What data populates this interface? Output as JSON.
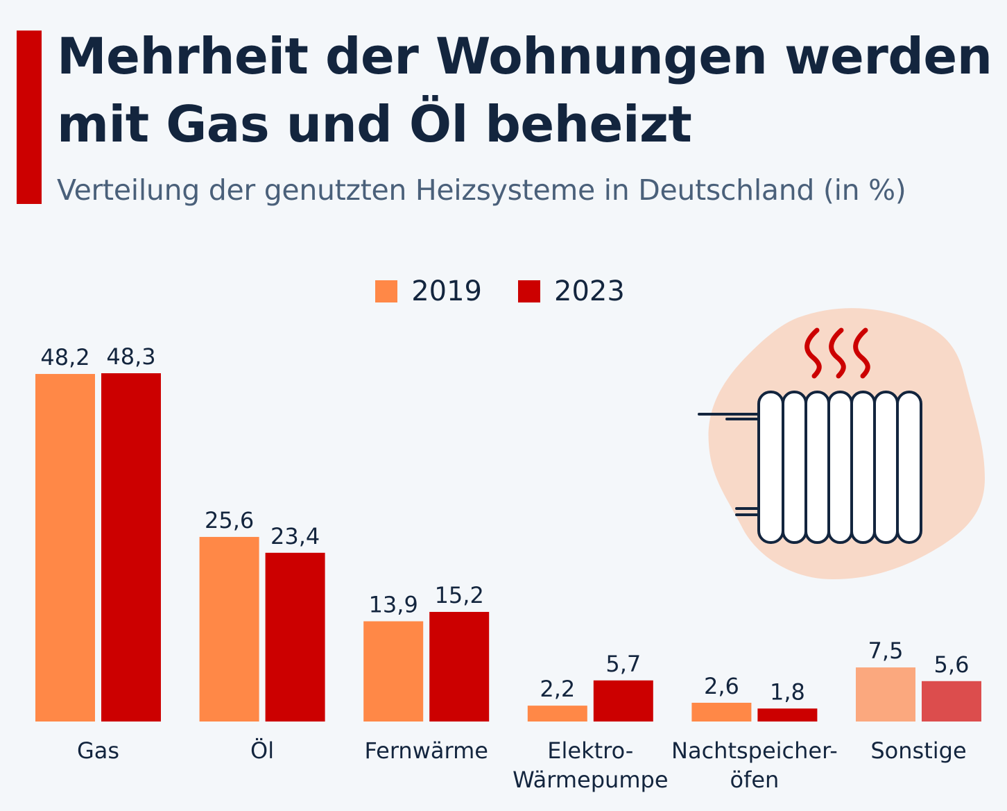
{
  "header": {
    "title": "Mehrheit der Wohnungen werden mit Gas und Öl beheizt",
    "subtitle": "Verteilung der genutzten Heizsysteme in Deutschland (in %)"
  },
  "colors": {
    "accent": "#cc0000",
    "series_2019": "#ff8847",
    "series_2023": "#cc0000",
    "series_2019_light": "#fba87e",
    "series_2023_light": "#dc4d4d",
    "text": "#13253e"
  },
  "illustration": {
    "icon": "radiator-icon"
  },
  "chart_data": {
    "type": "bar",
    "title": "Mehrheit der Wohnungen werden mit Gas und Öl beheizt",
    "subtitle": "Verteilung der genutzten Heizsysteme in Deutschland (in %)",
    "categories": [
      [
        "Gas"
      ],
      [
        "Öl"
      ],
      [
        "Fernwärme"
      ],
      [
        "Elektro-",
        "Wärmepumpe"
      ],
      [
        "Nachtspeicher-",
        "öfen"
      ],
      [
        "Sonstige"
      ]
    ],
    "series": [
      {
        "name": "2019",
        "values": [
          48.2,
          25.6,
          13.9,
          2.2,
          2.6,
          7.5
        ],
        "labels": [
          "48,2",
          "25,6",
          "13,9",
          "2,2",
          "2,6",
          "7,5"
        ]
      },
      {
        "name": "2023",
        "values": [
          48.3,
          23.4,
          15.2,
          5.7,
          1.8,
          5.6
        ],
        "labels": [
          "48,3",
          "23,4",
          "15,2",
          "5,7",
          "1,8",
          "5,6"
        ]
      }
    ],
    "legend_position": "top-center",
    "ylim": [
      0,
      48.3
    ],
    "grid": false,
    "xlabel": "",
    "ylabel": ""
  }
}
